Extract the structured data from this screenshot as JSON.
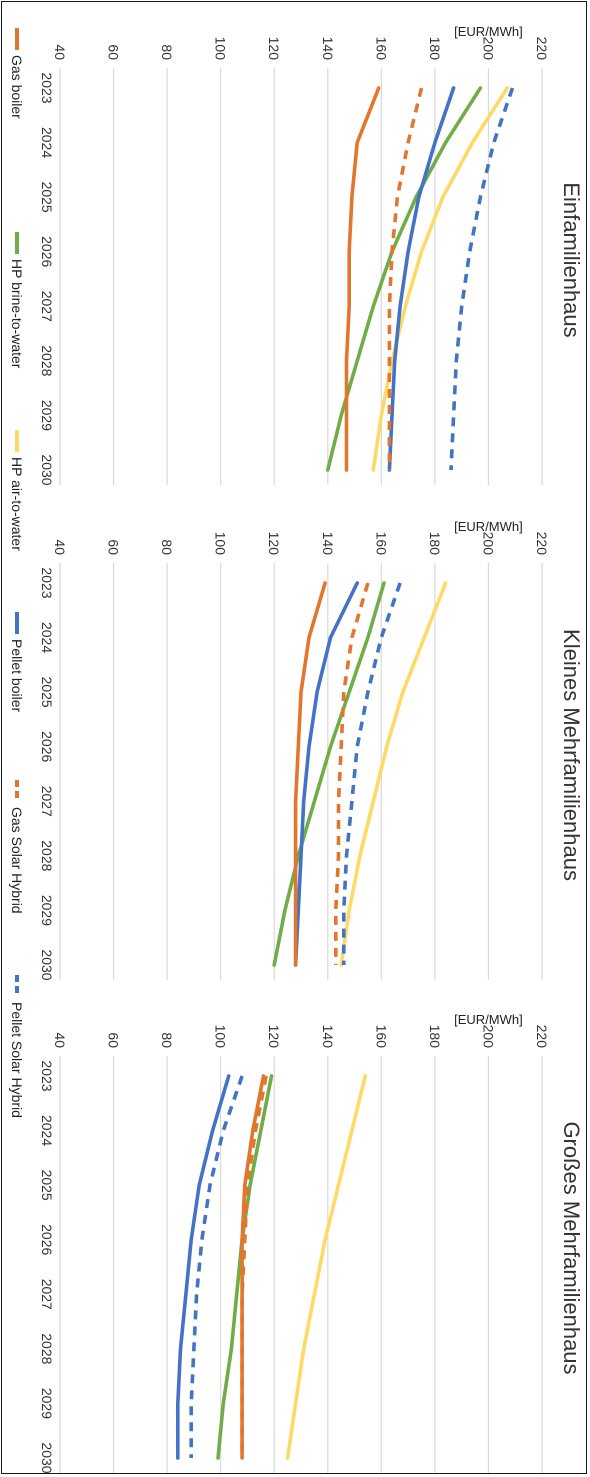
{
  "chart_data": [
    {
      "type": "line",
      "title": "Einfamilienhaus",
      "ylabel": "[EUR/MWh]",
      "ylim": [
        40,
        220
      ],
      "yticks": [
        40,
        60,
        80,
        100,
        120,
        140,
        160,
        180,
        200,
        220
      ],
      "x": [
        "2023",
        "2024",
        "2025",
        "2026",
        "2027",
        "2028",
        "2029",
        "2030"
      ],
      "series": [
        {
          "name": "Gas boiler",
          "color": "#e2762d",
          "dash": false,
          "values": [
            159,
            151,
            149,
            148,
            148,
            147,
            147,
            147
          ]
        },
        {
          "name": "HP brine-to-water",
          "color": "#70ad47",
          "dash": false,
          "values": [
            197,
            184,
            173,
            164,
            157,
            151,
            145,
            140
          ]
        },
        {
          "name": "HP air-to-water",
          "color": "#ffd966",
          "dash": false,
          "values": [
            207,
            194,
            183,
            175,
            169,
            164,
            160,
            157
          ]
        },
        {
          "name": "Pellet boiler",
          "color": "#4472c4",
          "dash": false,
          "values": [
            187,
            180,
            174,
            170,
            167,
            165,
            164,
            163
          ]
        },
        {
          "name": "Gas Solar Hybrid",
          "color": "#e2762d",
          "dash": true,
          "values": [
            175,
            170,
            166,
            164,
            163,
            163,
            163,
            163
          ]
        },
        {
          "name": "Pellet Solar Hybrid",
          "color": "#4472c4",
          "dash": true,
          "values": [
            209,
            202,
            197,
            193,
            190,
            188,
            187,
            186
          ]
        }
      ]
    },
    {
      "type": "line",
      "title": "Kleines Mehrfamilienhaus",
      "ylabel": "[EUR/MWh]",
      "ylim": [
        40,
        220
      ],
      "yticks": [
        40,
        60,
        80,
        100,
        120,
        140,
        160,
        180,
        200,
        220
      ],
      "x": [
        "2023",
        "2024",
        "2025",
        "2026",
        "2027",
        "2028",
        "2029",
        "2030"
      ],
      "series": [
        {
          "name": "Gas boiler",
          "color": "#e2762d",
          "dash": false,
          "values": [
            139,
            133,
            130,
            129,
            128,
            128,
            128,
            128
          ]
        },
        {
          "name": "HP brine-to-water",
          "color": "#70ad47",
          "dash": false,
          "values": [
            161,
            155,
            148,
            141,
            135,
            129,
            124,
            120
          ]
        },
        {
          "name": "HP air-to-water",
          "color": "#ffd966",
          "dash": false,
          "values": [
            184,
            176,
            168,
            162,
            157,
            152,
            148,
            145
          ]
        },
        {
          "name": "Pellet boiler",
          "color": "#4472c4",
          "dash": false,
          "values": [
            151,
            141,
            136,
            133,
            131,
            130,
            129,
            128
          ]
        },
        {
          "name": "Gas Solar Hybrid",
          "color": "#e2762d",
          "dash": true,
          "values": [
            155,
            149,
            146,
            145,
            144,
            144,
            143,
            143
          ]
        },
        {
          "name": "Pellet Solar Hybrid",
          "color": "#4472c4",
          "dash": true,
          "values": [
            167,
            160,
            155,
            151,
            149,
            147,
            146,
            146
          ]
        }
      ]
    },
    {
      "type": "line",
      "title": "Großes Mehrfamilienhaus",
      "ylabel": "[EUR/MWh]",
      "ylim": [
        40,
        220
      ],
      "yticks": [
        40,
        60,
        80,
        100,
        120,
        140,
        160,
        180,
        200,
        220
      ],
      "x": [
        "2023",
        "2024",
        "2025",
        "2026",
        "2027",
        "2028",
        "2029",
        "2030"
      ],
      "series": [
        {
          "name": "Gas boiler",
          "color": "#e2762d",
          "dash": false,
          "values": [
            116,
            112,
            109,
            108,
            108,
            108,
            108,
            108
          ]
        },
        {
          "name": "HP brine-to-water",
          "color": "#70ad47",
          "dash": false,
          "values": [
            119,
            115,
            111,
            108,
            106,
            104,
            101,
            99
          ]
        },
        {
          "name": "HP air-to-water",
          "color": "#ffd966",
          "dash": false,
          "values": [
            154,
            149,
            144,
            139,
            135,
            131,
            128,
            125
          ]
        },
        {
          "name": "Pellet boiler",
          "color": "#4472c4",
          "dash": false,
          "values": [
            103,
            97,
            92,
            89,
            87,
            85,
            84,
            84
          ]
        },
        {
          "name": "Gas Solar Hybrid",
          "color": "#e2762d",
          "dash": true,
          "values": [
            117,
            113,
            110,
            109,
            108,
            108,
            108,
            108
          ]
        },
        {
          "name": "Pellet Solar Hybrid",
          "color": "#4472c4",
          "dash": true,
          "values": [
            108,
            101,
            96,
            93,
            91,
            90,
            89,
            89
          ]
        }
      ]
    }
  ],
  "legend": {
    "placement": "bottom",
    "items": [
      {
        "label": "Gas boiler",
        "color": "#e2762d",
        "dash": false
      },
      {
        "label": "HP brine-to-water",
        "color": "#70ad47",
        "dash": false
      },
      {
        "label": "HP air-to-water",
        "color": "#ffd966",
        "dash": false
      },
      {
        "label": "Pellet boiler",
        "color": "#4472c4",
        "dash": false
      },
      {
        "label": "Gas Solar Hybrid",
        "color": "#e2762d",
        "dash": true
      },
      {
        "label": "Pellet Solar Hybrid",
        "color": "#4472c4",
        "dash": true
      }
    ]
  },
  "grid": true,
  "orientation": "rotated 90° clockwise"
}
